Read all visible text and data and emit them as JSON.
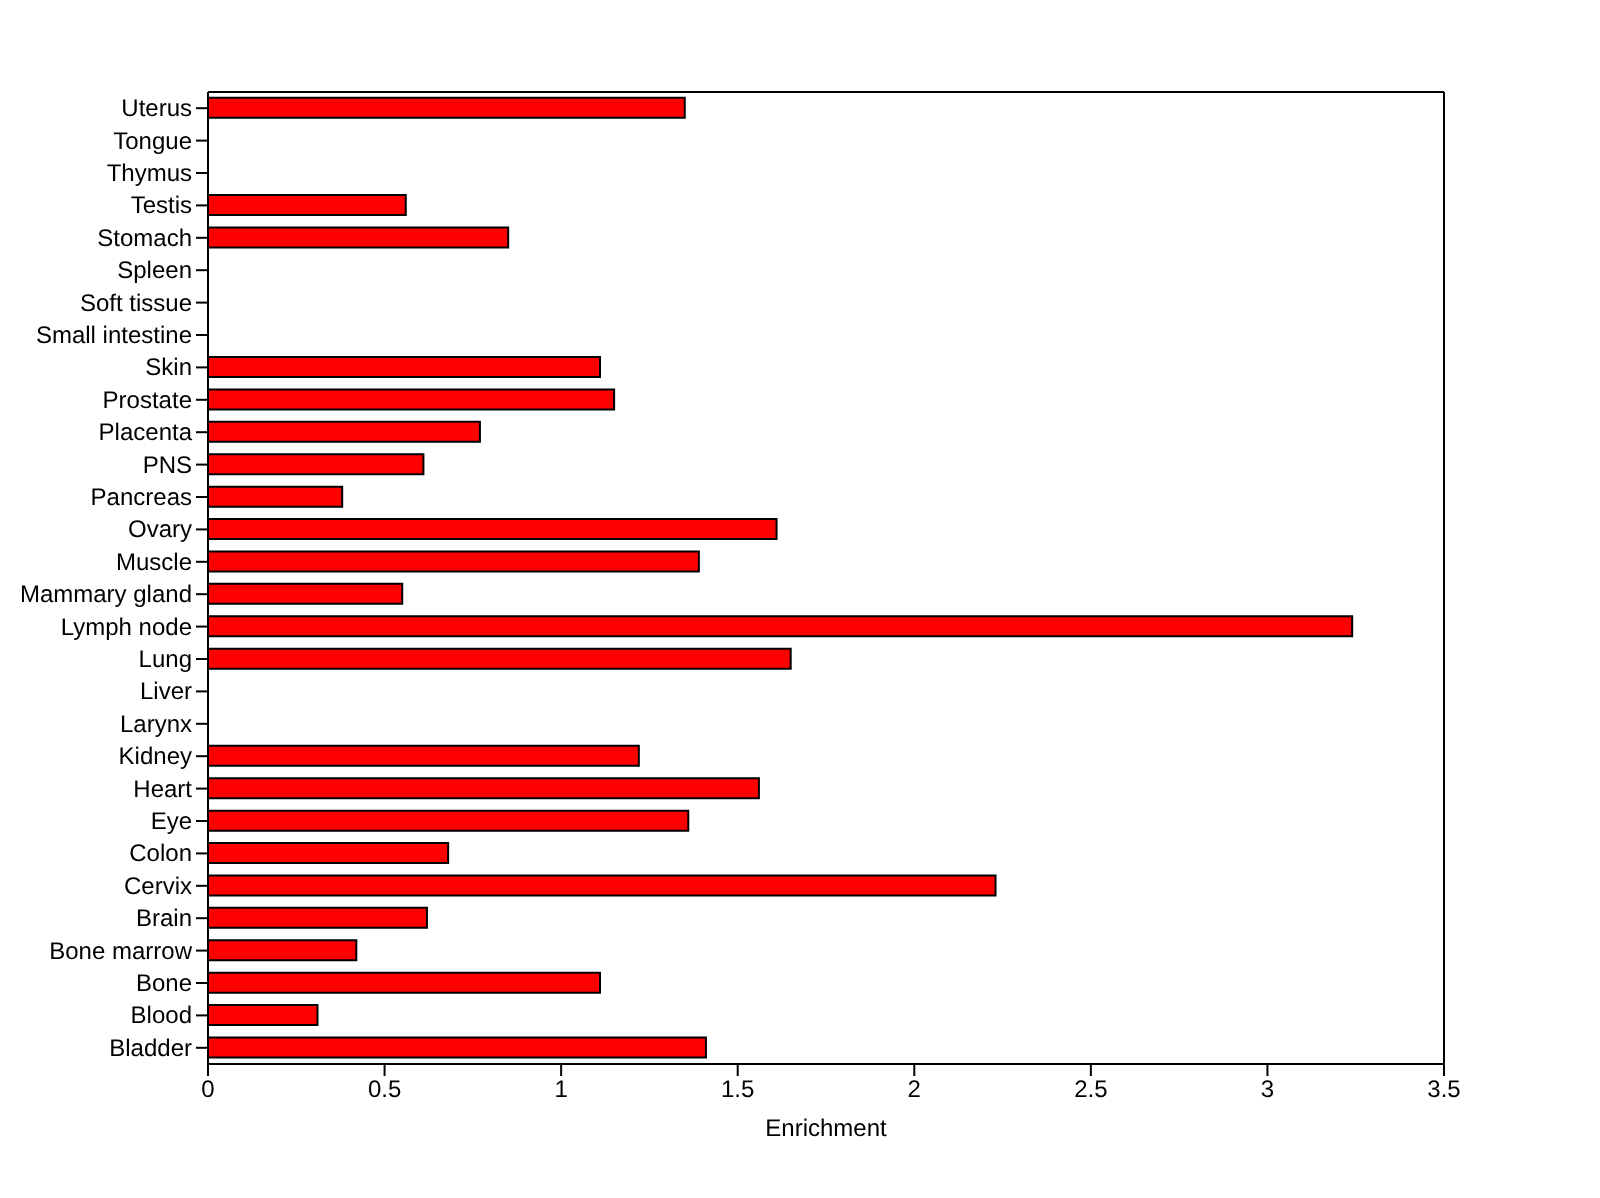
{
  "chart_data": {
    "type": "bar",
    "orientation": "horizontal",
    "xlabel": "Enrichment",
    "categories": [
      "Uterus",
      "Tongue",
      "Thymus",
      "Testis",
      "Stomach",
      "Spleen",
      "Soft tissue",
      "Small intestine",
      "Skin",
      "Prostate",
      "Placenta",
      "PNS",
      "Pancreas",
      "Ovary",
      "Muscle",
      "Mammary gland",
      "Lymph node",
      "Lung",
      "Liver",
      "Larynx",
      "Kidney",
      "Heart",
      "Eye",
      "Colon",
      "Cervix",
      "Brain",
      "Bone marrow",
      "Bone",
      "Blood",
      "Bladder"
    ],
    "values": [
      1.35,
      0,
      0,
      0.56,
      0.85,
      0,
      0,
      0,
      1.11,
      1.15,
      0.77,
      0.61,
      0.38,
      1.61,
      1.39,
      0.55,
      3.24,
      1.65,
      0,
      0,
      1.22,
      1.56,
      1.36,
      0.68,
      2.23,
      0.62,
      0.42,
      1.11,
      0.31,
      1.41
    ],
    "color": "#ff0000",
    "xlim": [
      0,
      3.5
    ],
    "xticks": [
      0,
      0.5,
      1,
      1.5,
      2,
      2.5,
      3,
      3.5
    ],
    "grid": false,
    "legend": false
  }
}
